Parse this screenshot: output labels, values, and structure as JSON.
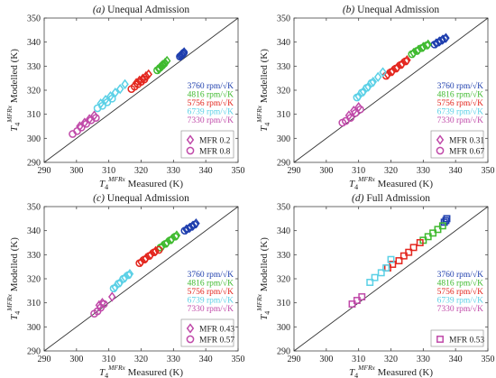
{
  "chart_data": [
    {
      "type": "scatter",
      "title": "(a) Unequal Admission",
      "xlabel": "T4 MFRx Measured (K)",
      "ylabel": "T4 MFRx Modelled (K)",
      "xlim": [
        290,
        350
      ],
      "ylim": [
        290,
        350
      ],
      "ticks": [
        290,
        300,
        310,
        320,
        330,
        340,
        350
      ],
      "reference_line": "y = x",
      "legend_position": "bottom-right",
      "speed_labels": [
        "3760 rpm/√K",
        "4816 rpm/√K",
        "5756 rpm/√K",
        "6739 rpm/√K",
        "7330 rpm/√K"
      ],
      "mfr_labels": [
        "MFR 0.2",
        "MFR 0.8"
      ],
      "series": [
        {
          "name": "3760 rpm/√K",
          "color": "#1f3fae",
          "diamond": [
            [
              332.2,
              334.2
            ],
            [
              332.6,
              334.8
            ],
            [
              333.0,
              335.3
            ],
            [
              333.3,
              335.8
            ]
          ],
          "circle": [
            [
              332.0,
              334.0
            ],
            [
              332.5,
              334.6
            ],
            [
              332.9,
              335.1
            ],
            [
              333.2,
              335.6
            ]
          ]
        },
        {
          "name": "4816 rpm/√K",
          "color": "#3fba2f",
          "diamond": [
            [
              325.5,
              328.8
            ],
            [
              326.2,
              329.8
            ],
            [
              326.8,
              330.6
            ],
            [
              327.4,
              331.4
            ],
            [
              328.0,
              332.2
            ]
          ],
          "circle": [
            [
              325.0,
              328.3
            ],
            [
              325.8,
              329.3
            ],
            [
              326.5,
              330.2
            ],
            [
              327.1,
              331.0
            ]
          ]
        },
        {
          "name": "5756 rpm/√K",
          "color": "#e3261e",
          "diamond": [
            [
              318.5,
              323.0
            ],
            [
              319.5,
              324.0
            ],
            [
              320.5,
              324.8
            ],
            [
              321.5,
              325.8
            ],
            [
              322.3,
              326.6
            ]
          ],
          "circle": [
            [
              317.0,
              320.5
            ],
            [
              318.0,
              321.5
            ],
            [
              319.0,
              322.5
            ],
            [
              320.0,
              323.5
            ],
            [
              321.0,
              324.5
            ]
          ]
        },
        {
          "name": "6739 rpm/√K",
          "color": "#5ad0e6",
          "diamond": [
            [
              307.5,
              314.5
            ],
            [
              309.0,
              316.0
            ],
            [
              310.5,
              317.5
            ],
            [
              312.0,
              319.0
            ],
            [
              313.5,
              320.5
            ],
            [
              315.0,
              322.5
            ]
          ],
          "circle": [
            [
              306.5,
              312.5
            ],
            [
              308.0,
              313.5
            ],
            [
              309.5,
              315.0
            ],
            [
              311.0,
              316.5
            ]
          ]
        },
        {
          "name": "7330 rpm/√K",
          "color": "#c04aa9",
          "diamond": [
            [
              301.0,
              305.0
            ],
            [
              302.5,
              306.5
            ],
            [
              304.0,
              308.0
            ],
            [
              305.5,
              309.5
            ]
          ],
          "circle": [
            [
              298.8,
              301.8
            ],
            [
              300.2,
              303.0
            ],
            [
              301.5,
              304.5
            ],
            [
              303.0,
              306.0
            ],
            [
              304.5,
              307.5
            ],
            [
              306.0,
              308.5
            ]
          ]
        }
      ]
    },
    {
      "type": "scatter",
      "title": "(b) Unequal Admission",
      "xlabel": "T4 MFRx Measured (K)",
      "ylabel": "T4 MFRx Modelled (K)",
      "xlim": [
        290,
        350
      ],
      "ylim": [
        290,
        350
      ],
      "ticks": [
        290,
        300,
        310,
        320,
        330,
        340,
        350
      ],
      "reference_line": "y = x",
      "legend_position": "bottom-right",
      "speed_labels": [
        "3760 rpm/√K",
        "4816 rpm/√K",
        "5756 rpm/√K",
        "6739 rpm/√K",
        "7330 rpm/√K"
      ],
      "mfr_labels": [
        "MFR 0.31",
        "MFR 0.67"
      ],
      "series": [
        {
          "name": "3760 rpm/√K",
          "color": "#1f3fae",
          "diamond": [
            [
              334.0,
              339.5
            ],
            [
              335.0,
              340.3
            ],
            [
              336.0,
              341.0
            ],
            [
              337.0,
              341.7
            ]
          ],
          "circle": [
            [
              333.5,
              339.0
            ],
            [
              334.5,
              339.8
            ],
            [
              335.5,
              340.6
            ],
            [
              336.5,
              341.4
            ]
          ]
        },
        {
          "name": "4816 rpm/√K",
          "color": "#3fba2f",
          "diamond": [
            [
              327.0,
              335.5
            ],
            [
              328.5,
              336.8
            ],
            [
              330.0,
              338.0
            ],
            [
              331.5,
              339.0
            ]
          ],
          "circle": [
            [
              326.5,
              335.0
            ],
            [
              328.0,
              336.3
            ],
            [
              329.5,
              337.5
            ],
            [
              331.0,
              338.6
            ]
          ]
        },
        {
          "name": "5756 rpm/√K",
          "color": "#e3261e",
          "diamond": [
            [
              319.0,
              326.5
            ],
            [
              320.5,
              328.0
            ],
            [
              322.0,
              329.5
            ],
            [
              323.5,
              331.0
            ],
            [
              325.0,
              332.5
            ]
          ],
          "circle": [
            [
              318.5,
              326.0
            ],
            [
              320.0,
              327.5
            ],
            [
              321.5,
              329.0
            ],
            [
              323.0,
              330.5
            ],
            [
              324.5,
              332.0
            ]
          ]
        },
        {
          "name": "6739 rpm/√K",
          "color": "#5ad0e6",
          "diamond": [
            [
              310.0,
              317.5
            ],
            [
              311.5,
              319.5
            ],
            [
              313.0,
              321.5
            ],
            [
              314.5,
              323.5
            ],
            [
              316.0,
              325.5
            ],
            [
              317.5,
              327.5
            ]
          ],
          "circle": [
            [
              309.5,
              317.0
            ],
            [
              311.0,
              319.0
            ],
            [
              312.5,
              321.0
            ],
            [
              314.0,
              323.0
            ]
          ]
        },
        {
          "name": "7330 rpm/√K",
          "color": "#c04aa9",
          "diamond": [
            [
              307.0,
              309.5
            ],
            [
              308.5,
              311.5
            ],
            [
              310.0,
              313.0
            ]
          ],
          "circle": [
            [
              305.0,
              306.5
            ],
            [
              306.0,
              307.2
            ],
            [
              307.5,
              308.5
            ],
            [
              309.0,
              310.5
            ],
            [
              310.5,
              312.0
            ]
          ]
        }
      ]
    },
    {
      "type": "scatter",
      "title": "(c) Unequal Admission",
      "xlabel": "T4 MFRx Measured (K)",
      "ylabel": "T4 MFRx Modelled (K)",
      "xlim": [
        290,
        350
      ],
      "ylim": [
        290,
        350
      ],
      "ticks": [
        290,
        300,
        310,
        320,
        330,
        340,
        350
      ],
      "reference_line": "y = x",
      "legend_position": "bottom-right",
      "speed_labels": [
        "3760 rpm/√K",
        "4816 rpm/√K",
        "5756 rpm/√K",
        "6739 rpm/√K",
        "7330 rpm/√K"
      ],
      "mfr_labels": [
        "MFR 0.43",
        "MFR 0.57"
      ],
      "series": [
        {
          "name": "3760 rpm/√K",
          "color": "#1f3fae",
          "diamond": [
            [
              334.0,
              340.5
            ],
            [
              335.0,
              341.2
            ],
            [
              336.0,
              342.0
            ],
            [
              337.0,
              343.0
            ]
          ],
          "circle": [
            [
              333.5,
              340.0
            ],
            [
              334.5,
              340.8
            ],
            [
              335.5,
              341.6
            ],
            [
              336.5,
              342.5
            ]
          ]
        },
        {
          "name": "4816 rpm/√K",
          "color": "#3fba2f",
          "diamond": [
            [
              326.5,
              333.5
            ],
            [
              328.0,
              335.0
            ],
            [
              329.5,
              336.5
            ],
            [
              331.0,
              338.0
            ]
          ],
          "circle": [
            [
              326.0,
              333.0
            ],
            [
              327.5,
              334.5
            ],
            [
              329.0,
              336.0
            ],
            [
              330.5,
              337.5
            ]
          ]
        },
        {
          "name": "5756 rpm/√K",
          "color": "#e3261e",
          "diamond": [
            [
              320.0,
              327.0
            ],
            [
              321.5,
              328.5
            ],
            [
              323.0,
              330.0
            ],
            [
              324.5,
              331.5
            ]
          ],
          "circle": [
            [
              319.5,
              326.5
            ],
            [
              321.0,
              328.0
            ],
            [
              322.5,
              329.5
            ],
            [
              324.0,
              331.0
            ],
            [
              325.5,
              332.0
            ]
          ]
        },
        {
          "name": "6739 rpm/√K",
          "color": "#5ad0e6",
          "diamond": [
            [
              312.0,
              316.5
            ],
            [
              313.5,
              318.5
            ],
            [
              315.0,
              320.5
            ],
            [
              316.5,
              322.0
            ]
          ],
          "circle": [
            [
              311.5,
              316.0
            ],
            [
              313.0,
              318.0
            ],
            [
              314.5,
              320.0
            ],
            [
              316.0,
              321.5
            ]
          ]
        },
        {
          "name": "7330 rpm/√K",
          "color": "#c04aa9",
          "diamond": [
            [
              307.0,
              309.0
            ],
            [
              308.0,
              310.0
            ],
            [
              311.0,
              312.5
            ]
          ],
          "circle": [
            [
              305.5,
              305.5
            ],
            [
              306.5,
              306.5
            ],
            [
              307.5,
              308.0
            ],
            [
              308.5,
              309.5
            ]
          ]
        }
      ]
    },
    {
      "type": "scatter",
      "title": "(d) Full Admission",
      "xlabel": "T4 MFRx Measured (K)",
      "ylabel": "T4 MFRx Modelled (K)",
      "xlim": [
        290,
        350
      ],
      "ylim": [
        290,
        350
      ],
      "ticks": [
        290,
        300,
        310,
        320,
        330,
        340,
        350
      ],
      "reference_line": "y = x",
      "legend_position": "bottom-right",
      "speed_labels": [
        "3760 rpm/√K",
        "4816 rpm/√K",
        "5756 rpm/√K",
        "6739 rpm/√K",
        "7330 rpm/√K"
      ],
      "mfr_labels": [
        "MFR 0.53"
      ],
      "series": [
        {
          "name": "3760 rpm/√K",
          "color": "#1f3fae",
          "square": [
            [
              336.5,
              343.5
            ],
            [
              337.0,
              344.2
            ],
            [
              337.3,
              345.0
            ]
          ]
        },
        {
          "name": "4816 rpm/√K",
          "color": "#3fba2f",
          "square": [
            [
              330.0,
              336.0
            ],
            [
              331.5,
              337.5
            ],
            [
              333.0,
              339.0
            ],
            [
              334.5,
              340.5
            ],
            [
              336.0,
              342.0
            ]
          ]
        },
        {
          "name": "5756 rpm/√K",
          "color": "#e3261e",
          "square": [
            [
              319.0,
              324.5
            ],
            [
              320.5,
              326.0
            ],
            [
              322.5,
              327.5
            ],
            [
              324.0,
              329.5
            ],
            [
              325.5,
              331.0
            ],
            [
              327.0,
              333.0
            ],
            [
              329.0,
              335.0
            ]
          ]
        },
        {
          "name": "6739 rpm/√K",
          "color": "#5ad0e6",
          "square": [
            [
              313.5,
              318.5
            ],
            [
              315.0,
              320.5
            ],
            [
              317.0,
              322.5
            ],
            [
              318.5,
              324.5
            ],
            [
              320.0,
              328.0
            ]
          ]
        },
        {
          "name": "7330 rpm/√K",
          "color": "#c04aa9",
          "square": [
            [
              308.0,
              309.5
            ],
            [
              309.5,
              311.0
            ],
            [
              311.0,
              312.5
            ]
          ]
        }
      ]
    }
  ]
}
